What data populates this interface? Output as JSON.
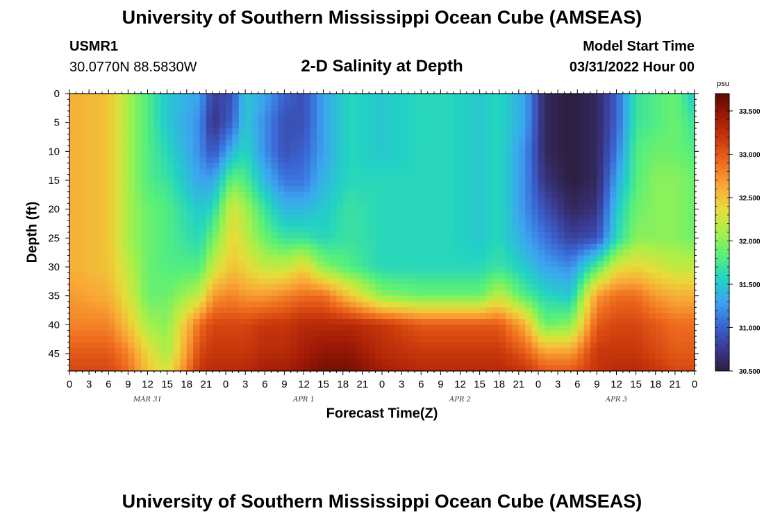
{
  "header": {
    "title": "University of Southern Mississippi Ocean Cube (AMSEAS)",
    "station": "USMR1",
    "coordinates": "30.0770N  88.5830W",
    "subtitle": "2-D Salinity at Depth",
    "model_start_label": "Model Start Time",
    "model_start_value": "03/31/2022 Hour 00"
  },
  "footer": {
    "title": "University of Southern Mississippi Ocean Cube (AMSEAS)"
  },
  "colorbar": {
    "unit": "psu",
    "min": 30.5,
    "max": 33.7,
    "ticks": [
      "30.500",
      "31.000",
      "31.500",
      "32.000",
      "32.500",
      "33.000",
      "33.500"
    ],
    "tick_values": [
      30.5,
      31.0,
      31.5,
      32.0,
      32.5,
      33.0,
      33.5
    ],
    "colors": [
      "#2d1e3e",
      "#3a3b92",
      "#3a67d6",
      "#3ca5f0",
      "#22d3c3",
      "#57f07a",
      "#a8f048",
      "#e8dc3a",
      "#f9a936",
      "#ef6c1e",
      "#cc3a0c",
      "#9e1a05",
      "#5e0a02"
    ]
  },
  "chart_data": {
    "type": "heatmap",
    "title": "2-D Salinity at Depth",
    "xlabel": "Forecast Time(Z)",
    "ylabel": "Depth (ft)",
    "xlim": [
      0,
      96
    ],
    "ylim": [
      48,
      0
    ],
    "x_tick_values": [
      0,
      3,
      6,
      9,
      12,
      15,
      18,
      21,
      24,
      27,
      30,
      33,
      36,
      39,
      42,
      45,
      48,
      51,
      54,
      57,
      60,
      63,
      66,
      69,
      72,
      75,
      78,
      81,
      84,
      87,
      90,
      93,
      96
    ],
    "x_tick_labels": [
      "0",
      "3",
      "6",
      "9",
      "12",
      "15",
      "18",
      "21",
      "0",
      "3",
      "6",
      "9",
      "12",
      "15",
      "18",
      "21",
      "0",
      "3",
      "6",
      "9",
      "12",
      "15",
      "18",
      "21",
      "0",
      "3",
      "6",
      "9",
      "12",
      "15",
      "18",
      "21",
      "0"
    ],
    "y_tick_values": [
      0,
      5,
      10,
      15,
      20,
      25,
      30,
      35,
      40,
      45
    ],
    "y_tick_labels": [
      "0",
      "5",
      "10",
      "15",
      "20",
      "25",
      "30",
      "35",
      "40",
      "45"
    ],
    "day_labels": [
      {
        "label": "MAR 31",
        "hour": 12
      },
      {
        "label": "APR 1",
        "hour": 36
      },
      {
        "label": "APR 2",
        "hour": 60
      },
      {
        "label": "APR 3",
        "hour": 84
      }
    ],
    "z_unit": "psu",
    "z_range": [
      30.5,
      33.7
    ],
    "grid_hours": [
      0,
      6,
      9,
      12,
      15,
      20,
      22,
      25,
      27,
      30,
      33,
      36,
      39,
      43,
      48,
      54,
      58,
      63,
      66,
      70,
      73,
      77,
      81,
      84,
      87,
      90,
      93,
      96
    ],
    "grid_depths": [
      0,
      5,
      10,
      15,
      20,
      25,
      30,
      35,
      40,
      45,
      48
    ],
    "salinity": [
      [
        32.6,
        32.6,
        32.6,
        32.6,
        32.6,
        32.6,
        32.6,
        32.7,
        32.8,
        33.0,
        33.1
      ],
      [
        32.5,
        32.5,
        32.5,
        32.5,
        32.5,
        32.5,
        32.5,
        32.6,
        32.8,
        33.0,
        33.1
      ],
      [
        32.1,
        32.1,
        32.1,
        32.1,
        32.1,
        32.1,
        32.2,
        32.3,
        32.5,
        32.8,
        32.9
      ],
      [
        31.8,
        31.8,
        31.8,
        31.8,
        31.9,
        31.9,
        31.9,
        31.9,
        32.1,
        32.4,
        32.5
      ],
      [
        31.5,
        31.5,
        31.6,
        31.7,
        31.8,
        31.8,
        31.8,
        31.9,
        32.0,
        32.1,
        32.3
      ],
      [
        31.3,
        31.2,
        31.2,
        31.3,
        31.5,
        31.6,
        31.8,
        32.2,
        32.9,
        33.1,
        33.2
      ],
      [
        30.8,
        30.7,
        30.9,
        31.3,
        31.6,
        31.9,
        32.2,
        32.7,
        33.1,
        33.2,
        33.3
      ],
      [
        30.9,
        31.0,
        31.4,
        31.9,
        32.3,
        32.4,
        32.5,
        32.8,
        33.1,
        33.2,
        33.3
      ],
      [
        31.5,
        31.5,
        31.6,
        31.8,
        32.1,
        32.2,
        32.4,
        32.7,
        33.1,
        33.2,
        33.3
      ],
      [
        31.3,
        31.2,
        31.2,
        31.4,
        31.7,
        31.9,
        32.2,
        32.7,
        33.2,
        33.3,
        33.4
      ],
      [
        31.0,
        30.9,
        30.9,
        31.1,
        31.4,
        31.7,
        32.2,
        32.8,
        33.2,
        33.3,
        33.4
      ],
      [
        30.9,
        30.9,
        31.0,
        31.1,
        31.4,
        31.7,
        32.4,
        32.9,
        33.3,
        33.4,
        33.5
      ],
      [
        31.3,
        31.3,
        31.3,
        31.4,
        31.5,
        31.6,
        32.0,
        32.9,
        33.3,
        33.5,
        33.6
      ],
      [
        31.6,
        31.6,
        31.6,
        31.6,
        31.7,
        31.7,
        31.8,
        32.5,
        33.3,
        33.5,
        33.6
      ],
      [
        31.5,
        31.5,
        31.5,
        31.6,
        31.6,
        31.6,
        31.6,
        32.0,
        33.2,
        33.3,
        33.4
      ],
      [
        31.6,
        31.6,
        31.6,
        31.6,
        31.6,
        31.6,
        31.6,
        31.9,
        33.0,
        33.2,
        33.3
      ],
      [
        31.6,
        31.6,
        31.6,
        31.6,
        31.6,
        31.6,
        31.6,
        31.9,
        33.0,
        33.2,
        33.3
      ],
      [
        31.5,
        31.5,
        31.5,
        31.5,
        31.5,
        31.5,
        31.6,
        31.9,
        33.0,
        33.2,
        33.3
      ],
      [
        31.6,
        31.6,
        31.6,
        31.6,
        31.6,
        31.6,
        31.7,
        32.2,
        33.0,
        33.2,
        33.3
      ],
      [
        31.3,
        31.3,
        31.2,
        31.2,
        31.2,
        31.3,
        31.5,
        31.8,
        32.6,
        33.0,
        33.2
      ],
      [
        30.6,
        30.6,
        30.6,
        30.7,
        30.9,
        31.1,
        31.3,
        31.6,
        31.9,
        32.7,
        33.0
      ],
      [
        30.5,
        30.5,
        30.5,
        30.5,
        30.6,
        30.8,
        31.2,
        31.5,
        32.0,
        32.7,
        33.0
      ],
      [
        30.6,
        30.6,
        30.6,
        30.6,
        30.7,
        30.9,
        31.8,
        32.7,
        33.0,
        33.2,
        33.2
      ],
      [
        31.0,
        31.0,
        31.1,
        31.3,
        31.5,
        31.6,
        32.3,
        32.9,
        33.1,
        33.2,
        33.3
      ],
      [
        31.7,
        31.7,
        31.8,
        31.8,
        31.9,
        32.0,
        32.4,
        32.9,
        33.1,
        33.2,
        33.3
      ],
      [
        31.8,
        31.8,
        31.9,
        32.0,
        32.0,
        32.0,
        32.3,
        32.7,
        33.0,
        33.1,
        33.2
      ],
      [
        31.9,
        31.9,
        31.9,
        32.0,
        32.0,
        32.0,
        32.2,
        32.6,
        32.9,
        33.0,
        33.1
      ],
      [
        31.5,
        31.7,
        31.8,
        31.9,
        31.9,
        31.9,
        32.2,
        32.6,
        32.9,
        33.0,
        33.1
      ]
    ]
  }
}
